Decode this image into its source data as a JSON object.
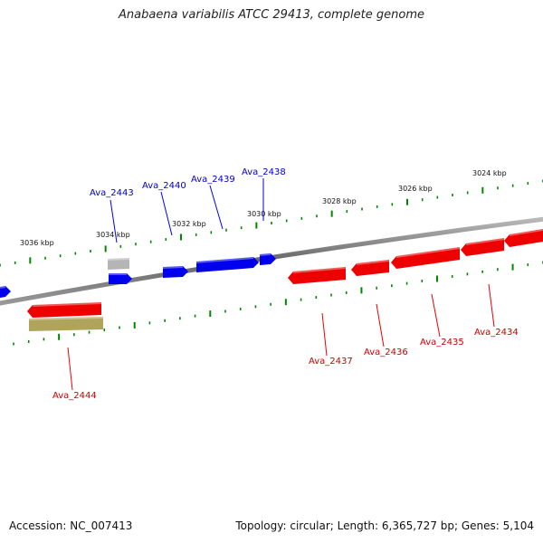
{
  "title": "Anabaena variabilis ATCC 29413, complete genome",
  "footer": {
    "accession": "Accession: NC_007413",
    "topology": "Topology: circular; Length: 6,365,727 bp; Genes: 5,104"
  },
  "colors": {
    "forward_gene": "#0000ee",
    "reverse_gene": "#ee0000",
    "ticks": "#008800",
    "backbone": "#777777",
    "pseudo_gene": "#b5b5b5",
    "other_feature": "#b0a45c"
  },
  "scale_labels": [
    "3036 kbp",
    "3034 kbp",
    "3032 kbp",
    "3030 kbp",
    "3028 kbp",
    "3026 kbp",
    "3024 kbp"
  ],
  "forward_gene_labels": [
    "Ava_2443",
    "Ava_2440",
    "Ava_2439",
    "Ava_2438"
  ],
  "reverse_gene_labels": [
    "Ava_2444",
    "Ava_2437",
    "Ava_2436",
    "Ava_2435",
    "Ava_2434"
  ]
}
